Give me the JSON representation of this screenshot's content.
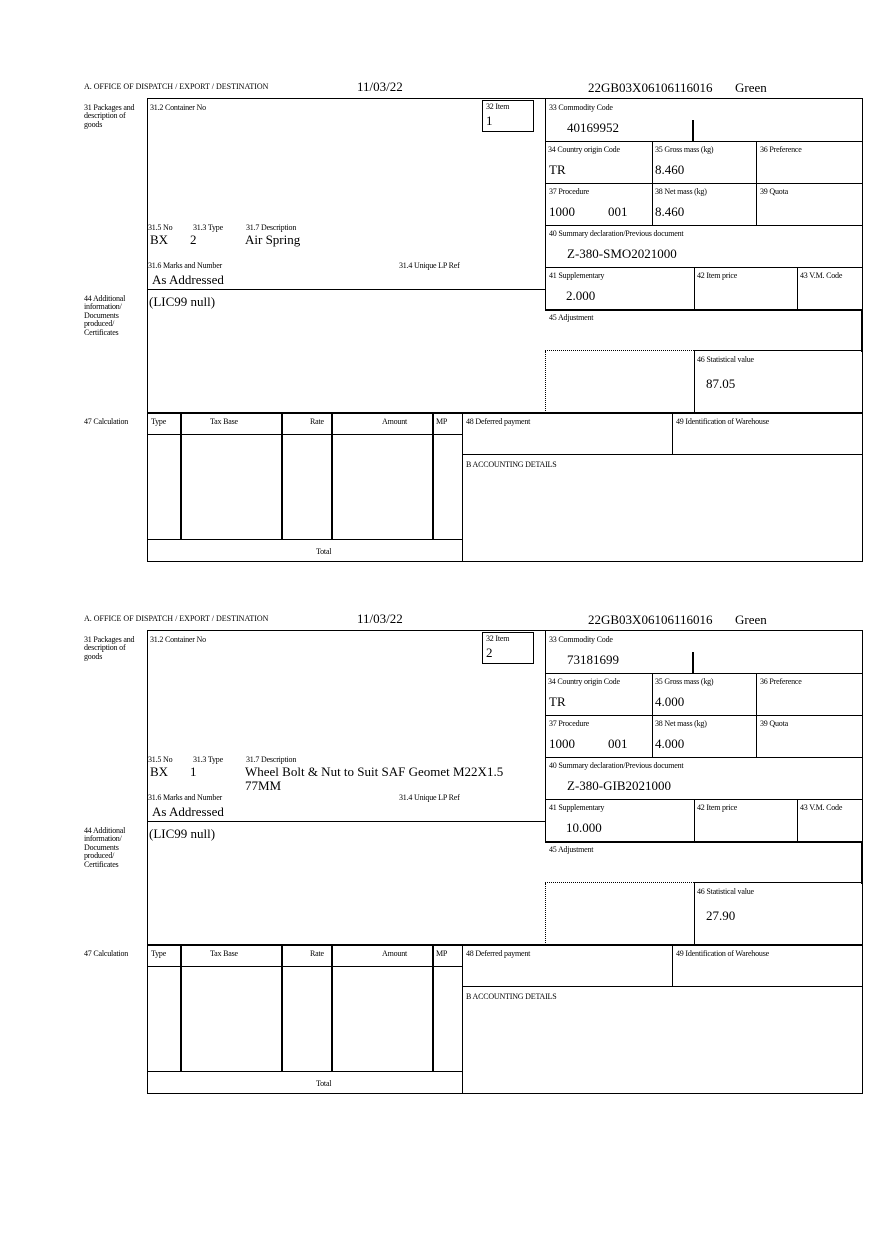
{
  "labels": {
    "office": "A. OFFICE OF DISPATCH / EXPORT / DESTINATION",
    "packages": "31 Packages and description of goods",
    "container": "31.2 Container No",
    "item": "32 Item",
    "no": "31.5 No",
    "type": "31.3 Type",
    "description": "31.7 Description",
    "marks": "31.6 Marks and Number",
    "unique_lp": "31.4 Unique LP Ref",
    "commodity": "33 Commodity Code",
    "country": "34 Country origin Code",
    "gross": "35 Gross mass (kg)",
    "preference": "36 Preference",
    "procedure": "37 Procedure",
    "net": "38 Net mass (kg)",
    "quota": "39 Quota",
    "summary": "40 Summary declaration/Previous document",
    "supplementary": "41 Supplementary",
    "item_price": "42 Item price",
    "vm_code": "43 V.M. Code",
    "adjustment": "45 Adjustment",
    "statistical": "46 Statistical value",
    "additional": "44 Additional information/ Documents produced/ Certificates",
    "calculation": "47 Calculation",
    "calc_type": "Type",
    "tax_base": "Tax Base",
    "rate": "Rate",
    "amount": "Amount",
    "mp": "MP",
    "deferred": "48 Deferred payment",
    "warehouse": "49 Identification of Warehouse",
    "accounting": "B ACCOUNTING DETAILS",
    "total": "Total"
  },
  "items": [
    {
      "date": "11/03/22",
      "reference": "22GB03X06106116016",
      "route": "Green",
      "item_no": "1",
      "package_kind": "BX",
      "package_count": "2",
      "description": "Air Spring",
      "marks": "As Addressed",
      "additional_info": "(LIC99 null)",
      "commodity_code": "40169952",
      "country_origin": "TR",
      "gross_mass": "8.460",
      "procedure": "1000",
      "procedure_add": "001",
      "net_mass": "8.460",
      "summary_doc": "Z-380-SMO2021000",
      "supplementary": "2.000",
      "statistical_value": "87.05"
    },
    {
      "date": "11/03/22",
      "reference": "22GB03X06106116016",
      "route": "Green",
      "item_no": "2",
      "package_kind": "BX",
      "package_count": "1",
      "description": "Wheel Bolt & Nut to Suit SAF Geomet M22X1.5 77MM",
      "marks": "As Addressed",
      "additional_info": "(LIC99 null)",
      "commodity_code": "73181699",
      "country_origin": "TR",
      "gross_mass": "4.000",
      "procedure": "1000",
      "procedure_add": "001",
      "net_mass": "4.000",
      "summary_doc": "Z-380-GIB2021000",
      "supplementary": "10.000",
      "statistical_value": "27.90"
    }
  ]
}
